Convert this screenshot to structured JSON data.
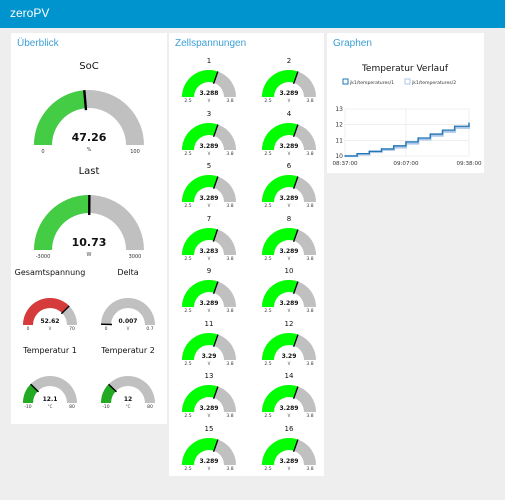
{
  "app": {
    "title": "zeroPV"
  },
  "colors": {
    "header": "#0094ce",
    "group_title": "#3ca0d8",
    "green_bright": "#00ff00",
    "green": "#44cc44",
    "green_dark": "#22aa22",
    "red": "#d63b3b",
    "grey": "#c0c0c0"
  },
  "groups": {
    "overview": {
      "title": "Überblick"
    },
    "cells": {
      "title": "Zellspannungen"
    },
    "graphs": {
      "title": "Graphen"
    }
  },
  "overview_gauges": [
    {
      "id": "soc",
      "label": "SoC",
      "value": "47.26",
      "unit": "%",
      "min": "0",
      "max": "100",
      "fraction": 0.4726,
      "color": "#44cc44"
    },
    {
      "id": "last",
      "label": "Last",
      "value": "10.73",
      "unit": "W",
      "min": "-3000",
      "max": "3000",
      "fraction": 0.502,
      "color": "#44cc44"
    },
    {
      "id": "gesamtspannung",
      "label": "Gesamtspannung",
      "value": "52.62",
      "unit": "V",
      "min": "0",
      "max": "70",
      "fraction": 0.752,
      "color": "#d63b3b"
    },
    {
      "id": "delta",
      "label": "Delta",
      "value": "0.007",
      "unit": "V",
      "min": "0",
      "max": "0.7",
      "fraction": 0.01,
      "color": "#22aa22"
    },
    {
      "id": "temp1",
      "label": "Temperatur 1",
      "value": "12.1",
      "unit": "°C",
      "min": "-10",
      "max": "80",
      "fraction": 0.2456,
      "color": "#22aa22"
    },
    {
      "id": "temp2",
      "label": "Temperatur 2",
      "value": "12",
      "unit": "°C",
      "min": "-10",
      "max": "80",
      "fraction": 0.2444,
      "color": "#22aa22"
    }
  ],
  "cells": {
    "min": "2.5",
    "max": "3.8",
    "unit": "V",
    "items": [
      {
        "label": "1",
        "value": "3.288",
        "fraction": 0.606
      },
      {
        "label": "2",
        "value": "3.289",
        "fraction": 0.607
      },
      {
        "label": "3",
        "value": "3.289",
        "fraction": 0.607
      },
      {
        "label": "4",
        "value": "3.289",
        "fraction": 0.607
      },
      {
        "label": "5",
        "value": "3.289",
        "fraction": 0.607
      },
      {
        "label": "6",
        "value": "3.289",
        "fraction": 0.607
      },
      {
        "label": "7",
        "value": "3.283",
        "fraction": 0.602
      },
      {
        "label": "8",
        "value": "3.289",
        "fraction": 0.607
      },
      {
        "label": "9",
        "value": "3.289",
        "fraction": 0.607
      },
      {
        "label": "10",
        "value": "3.289",
        "fraction": 0.607
      },
      {
        "label": "11",
        "value": "3.29",
        "fraction": 0.608
      },
      {
        "label": "12",
        "value": "3.29",
        "fraction": 0.608
      },
      {
        "label": "13",
        "value": "3.289",
        "fraction": 0.607
      },
      {
        "label": "14",
        "value": "3.289",
        "fraction": 0.607
      },
      {
        "label": "15",
        "value": "3.289",
        "fraction": 0.607
      },
      {
        "label": "16",
        "value": "3.289",
        "fraction": 0.607
      }
    ]
  },
  "chart_data": {
    "type": "line",
    "title": "Temperatur Verlauf",
    "xlabel": "",
    "ylabel": "",
    "ylim": [
      10,
      13
    ],
    "y_ticks": [
      "13",
      "12",
      "11",
      "10"
    ],
    "x_ticks": [
      "08:37:00",
      "09:07:00",
      "09:38:00"
    ],
    "x_tick_minutes": [
      0,
      30,
      61
    ],
    "x_range_minutes": [
      0,
      61
    ],
    "grid": true,
    "legend_position": "top",
    "series": [
      {
        "name": "jk1/temperatures/1",
        "color": "#1f77b4",
        "x_minutes": [
          0,
          6,
          12,
          18,
          24,
          30,
          36,
          42,
          48,
          54,
          61
        ],
        "values": [
          10.0,
          10.15,
          10.3,
          10.45,
          10.65,
          10.9,
          11.15,
          11.4,
          11.65,
          11.9,
          12.1
        ]
      },
      {
        "name": "jk1/temperatures/2",
        "color": "#aec7e8",
        "x_minutes": [
          0,
          6,
          12,
          18,
          24,
          30,
          36,
          42,
          48,
          54,
          61
        ],
        "values": [
          10.0,
          10.1,
          10.25,
          10.4,
          10.55,
          10.8,
          11.05,
          11.3,
          11.55,
          11.8,
          12.0
        ]
      }
    ]
  }
}
